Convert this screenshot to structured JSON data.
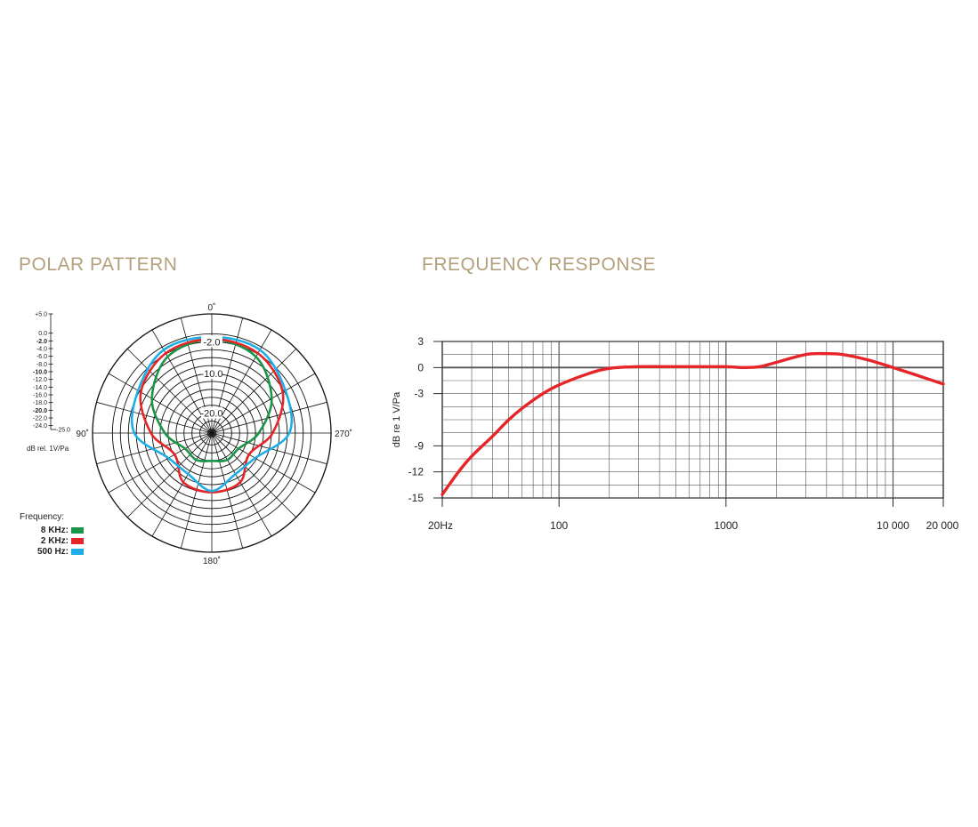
{
  "polar": {
    "title": "POLAR PATTERN",
    "scale_labels": [
      "+5.0",
      "0.0",
      "-2.0",
      "-4.0",
      "-6.0",
      "-8.0",
      "-10.0",
      "-12.0",
      "-14.0",
      "-16.0",
      "-18.0",
      "-20.0",
      "-22.0",
      "-24.0",
      "-25.0"
    ],
    "scale_bold": [
      "-2.0",
      "-10.0",
      "-20.0"
    ],
    "ring_labels": [
      "-2.0",
      "-10.0",
      "-20.0"
    ],
    "angle_labels": {
      "top": "0˚",
      "left": "90˚",
      "right": "270˚",
      "bottom": "180˚"
    },
    "units": "dB rel. 1V/Pa",
    "legend_title": "Frequency:",
    "legend": [
      {
        "label": "8 KHz:",
        "color": "#1a9447"
      },
      {
        "label": "2 KHz:",
        "color": "#e52528"
      },
      {
        "label": "500 Hz:",
        "color": "#1eaee6"
      }
    ]
  },
  "frequency": {
    "title": "FREQUENCY RESPONSE"
  },
  "chart_data": [
    {
      "type": "polar",
      "title": "POLAR PATTERN",
      "radial_unit": "dB rel. 1V/Pa",
      "rlim": [
        -25,
        5
      ],
      "angles_deg": [
        0,
        30,
        60,
        90,
        120,
        150,
        180,
        210,
        240,
        270,
        300,
        330
      ],
      "series": [
        {
          "name": "8 KHz:",
          "color": "#1a9447",
          "r_db": [
            -1.4,
            -2.8,
            -7.6,
            -13.2,
            -17.2,
            -17.2,
            -18.0,
            -17.2,
            -17.2,
            -13.2,
            -7.6,
            -2.8
          ]
        },
        {
          "name": "2 KHz:",
          "color": "#e52528",
          "r_db": [
            -1.3,
            -1.8,
            -4.4,
            -9.7,
            -14.2,
            -10.7,
            -10.1,
            -10.7,
            -14.2,
            -9.7,
            -4.4,
            -1.8
          ]
        },
        {
          "name": "500 Hz:",
          "color": "#1eaee6",
          "r_db": [
            -0.8,
            -0.8,
            -3.6,
            -5.5,
            -12.4,
            -13.1,
            -10.4,
            -13.1,
            -12.4,
            -5.5,
            -3.6,
            -0.8
          ]
        }
      ]
    },
    {
      "type": "line",
      "title": "FREQUENCY RESPONSE",
      "xlabel": "",
      "ylabel": "dB re 1 V/Pa",
      "xscale": "log",
      "xlim": [
        20,
        20000
      ],
      "ylim": [
        -15,
        3
      ],
      "xtick_labels": [
        "20Hz",
        "100",
        "1000",
        "10 000",
        "20 000"
      ],
      "xtick_values": [
        20,
        100,
        1000,
        10000,
        20000
      ],
      "ytick_labels": [
        "3",
        "0",
        "-3",
        "-9",
        "-12",
        "-15"
      ],
      "ytick_values": [
        3,
        0,
        -3,
        -9,
        -12,
        -15
      ],
      "series": [
        {
          "color": "#e52528",
          "x": [
            20,
            25,
            30,
            40,
            50,
            60,
            80,
            100,
            150,
            200,
            300,
            500,
            700,
            1000,
            1300,
            1600,
            2000,
            3000,
            4000,
            5000,
            7000,
            10000,
            15000,
            20000
          ],
          "y": [
            -14.6,
            -12.0,
            -10.2,
            -7.9,
            -6.0,
            -4.7,
            -3.0,
            -2.0,
            -0.7,
            -0.1,
            0.1,
            0.1,
            0.1,
            0.1,
            0.0,
            0.1,
            0.6,
            1.5,
            1.6,
            1.5,
            0.9,
            0.0,
            -1.1,
            -1.9
          ]
        }
      ]
    }
  ]
}
